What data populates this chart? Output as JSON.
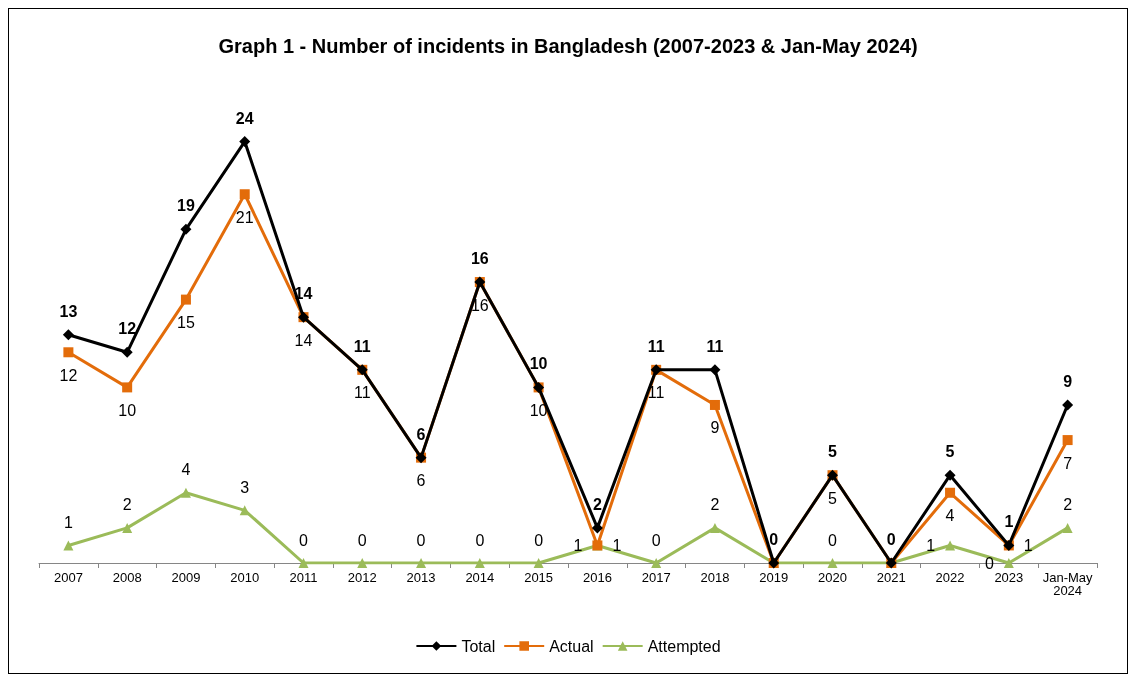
{
  "chart_data": {
    "type": "line",
    "title": "Graph 1 - Number of incidents in Bangladesh (2007-2023 & Jan-May 2024)",
    "categories": [
      "2007",
      "2008",
      "2009",
      "2010",
      "2011",
      "2012",
      "2013",
      "2014",
      "2015",
      "2016",
      "2017",
      "2018",
      "2019",
      "2020",
      "2021",
      "2022",
      "2023",
      "Jan-May\n2024"
    ],
    "series": [
      {
        "name": "Total",
        "color": "#000000",
        "marker": "diamond",
        "values": [
          13,
          12,
          19,
          24,
          14,
          11,
          6,
          16,
          10,
          2,
          11,
          11,
          0,
          5,
          0,
          5,
          1,
          9
        ],
        "value_labels": [
          "13",
          "12",
          "19",
          "24",
          "14",
          "11",
          "6",
          "16",
          "10",
          "2",
          "11",
          "11",
          "0",
          "5",
          "0",
          "5",
          "1",
          "9"
        ]
      },
      {
        "name": "Actual",
        "color": "#e36c0a",
        "marker": "square",
        "values": [
          12,
          10,
          15,
          21,
          14,
          11,
          6,
          16,
          10,
          1,
          11,
          9,
          0,
          5,
          0,
          4,
          1,
          7
        ],
        "value_labels": [
          "12",
          "10",
          "15",
          "21",
          "14",
          "11",
          "6",
          "16",
          "10",
          "1",
          "11",
          "9",
          null,
          "5",
          null,
          "4",
          "1",
          "7"
        ]
      },
      {
        "name": "Attempted",
        "color": "#9bbb59",
        "marker": "triangle",
        "values": [
          1,
          2,
          4,
          3,
          0,
          0,
          0,
          0,
          0,
          1,
          0,
          2,
          0,
          0,
          0,
          1,
          0,
          2
        ],
        "value_labels": [
          "1",
          "2",
          "4",
          "3",
          "0",
          "0",
          "0",
          "0",
          "0",
          "1",
          "0",
          "2",
          null,
          "0",
          null,
          "1",
          "0",
          "2"
        ]
      }
    ],
    "grid": false,
    "legend": "bottom"
  }
}
